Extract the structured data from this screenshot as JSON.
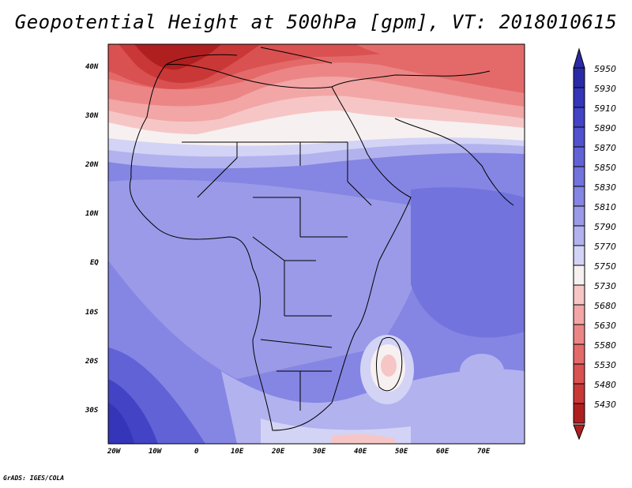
{
  "title": "Geopotential Height at 500hPa [gpm], VT: 2018010615",
  "credit": "GrADS: IGES/COLA",
  "map": {
    "variable": "500hPa geopotential height",
    "region": "Africa",
    "lon_range": [
      -22,
      80
    ],
    "lat_range": [
      -37,
      45
    ],
    "lat_ticks": [
      "40N",
      "30N",
      "20N",
      "10N",
      "EQ",
      "10S",
      "20S",
      "30S"
    ],
    "lon_ticks": [
      "20W",
      "10W",
      "0",
      "10E",
      "20E",
      "30E",
      "40E",
      "50E",
      "60E",
      "70E"
    ]
  },
  "colorbar": {
    "levels": [
      "5950",
      "5930",
      "5910",
      "5890",
      "5870",
      "5850",
      "5830",
      "5810",
      "5790",
      "5770",
      "5750",
      "5730",
      "5680",
      "5630",
      "5580",
      "5530",
      "5480",
      "5430"
    ],
    "colors": [
      "#2b2aa6",
      "#3535b9",
      "#4343c6",
      "#5252cf",
      "#6262d7",
      "#7373dd",
      "#8585e3",
      "#9a9ae8",
      "#b2b2ef",
      "#d3d3f6",
      "#f7f0f0",
      "#f6c6c6",
      "#f2a6a6",
      "#ec8686",
      "#e46a6a",
      "#da5151",
      "#c93737",
      "#b01f1f"
    ]
  }
}
